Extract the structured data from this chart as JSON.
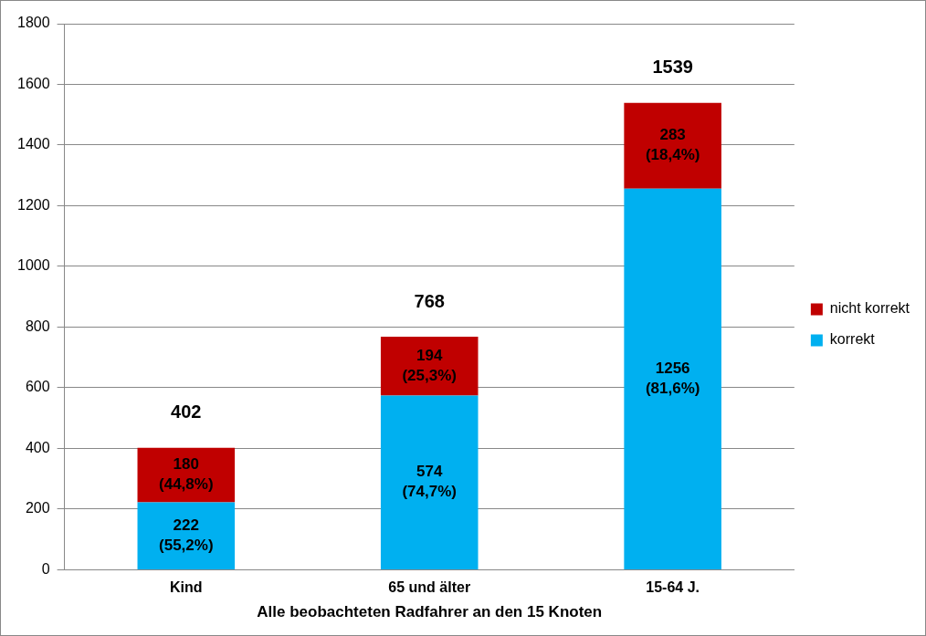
{
  "chart_data": {
    "type": "bar",
    "stacked": true,
    "xlabel": "Alle beobachteten Radfahrer an den 15 Knoten",
    "categories": [
      "Kind",
      "65 und älter",
      "15-64 J."
    ],
    "series": [
      {
        "name": "korrekt",
        "color": "#00b0f0",
        "values": [
          222,
          574,
          1256
        ],
        "value_labels": [
          "222 (55,2%)",
          "574 (74,7%)",
          "1256 (81,6%)"
        ]
      },
      {
        "name": "nicht korrekt",
        "color": "#c00000",
        "values": [
          180,
          194,
          283
        ],
        "value_labels": [
          "180 (44,8%)",
          "194 (25,3%)",
          "283 (18,4%)"
        ]
      }
    ],
    "totals": [
      "402",
      "768",
      "1539"
    ],
    "ylim": [
      0,
      1800
    ],
    "yticks": [
      0,
      200,
      400,
      600,
      800,
      1000,
      1200,
      1400,
      1600,
      1800
    ],
    "grid": "y",
    "legend": "right"
  }
}
